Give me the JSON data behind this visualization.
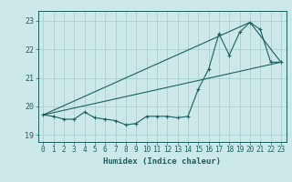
{
  "title": "",
  "xlabel": "Humidex (Indice chaleur)",
  "ylabel": "",
  "bg_color": "#cce8e8",
  "grid_color": "#aad0d0",
  "line_color": "#1a6060",
  "xlim": [
    -0.5,
    23.5
  ],
  "ylim": [
    18.75,
    23.35
  ],
  "yticks": [
    19,
    20,
    21,
    22,
    23
  ],
  "xticks": [
    0,
    1,
    2,
    3,
    4,
    5,
    6,
    7,
    8,
    9,
    10,
    11,
    12,
    13,
    14,
    15,
    16,
    17,
    18,
    19,
    20,
    21,
    22,
    23
  ],
  "line1_x": [
    0,
    1,
    2,
    3,
    4,
    5,
    6,
    7,
    8,
    9,
    10,
    11,
    12,
    13,
    14,
    15,
    16,
    17,
    18,
    19,
    20,
    21,
    22,
    23
  ],
  "line1_y": [
    19.7,
    19.65,
    19.55,
    19.55,
    19.8,
    19.6,
    19.55,
    19.5,
    19.35,
    19.4,
    19.65,
    19.65,
    19.65,
    19.6,
    19.65,
    20.6,
    21.3,
    22.55,
    21.8,
    22.6,
    22.95,
    22.7,
    21.55,
    21.55
  ],
  "line2_x": [
    0,
    23
  ],
  "line2_y": [
    19.7,
    21.55
  ],
  "line3_x": [
    0,
    20,
    23
  ],
  "line3_y": [
    19.7,
    22.95,
    21.55
  ]
}
